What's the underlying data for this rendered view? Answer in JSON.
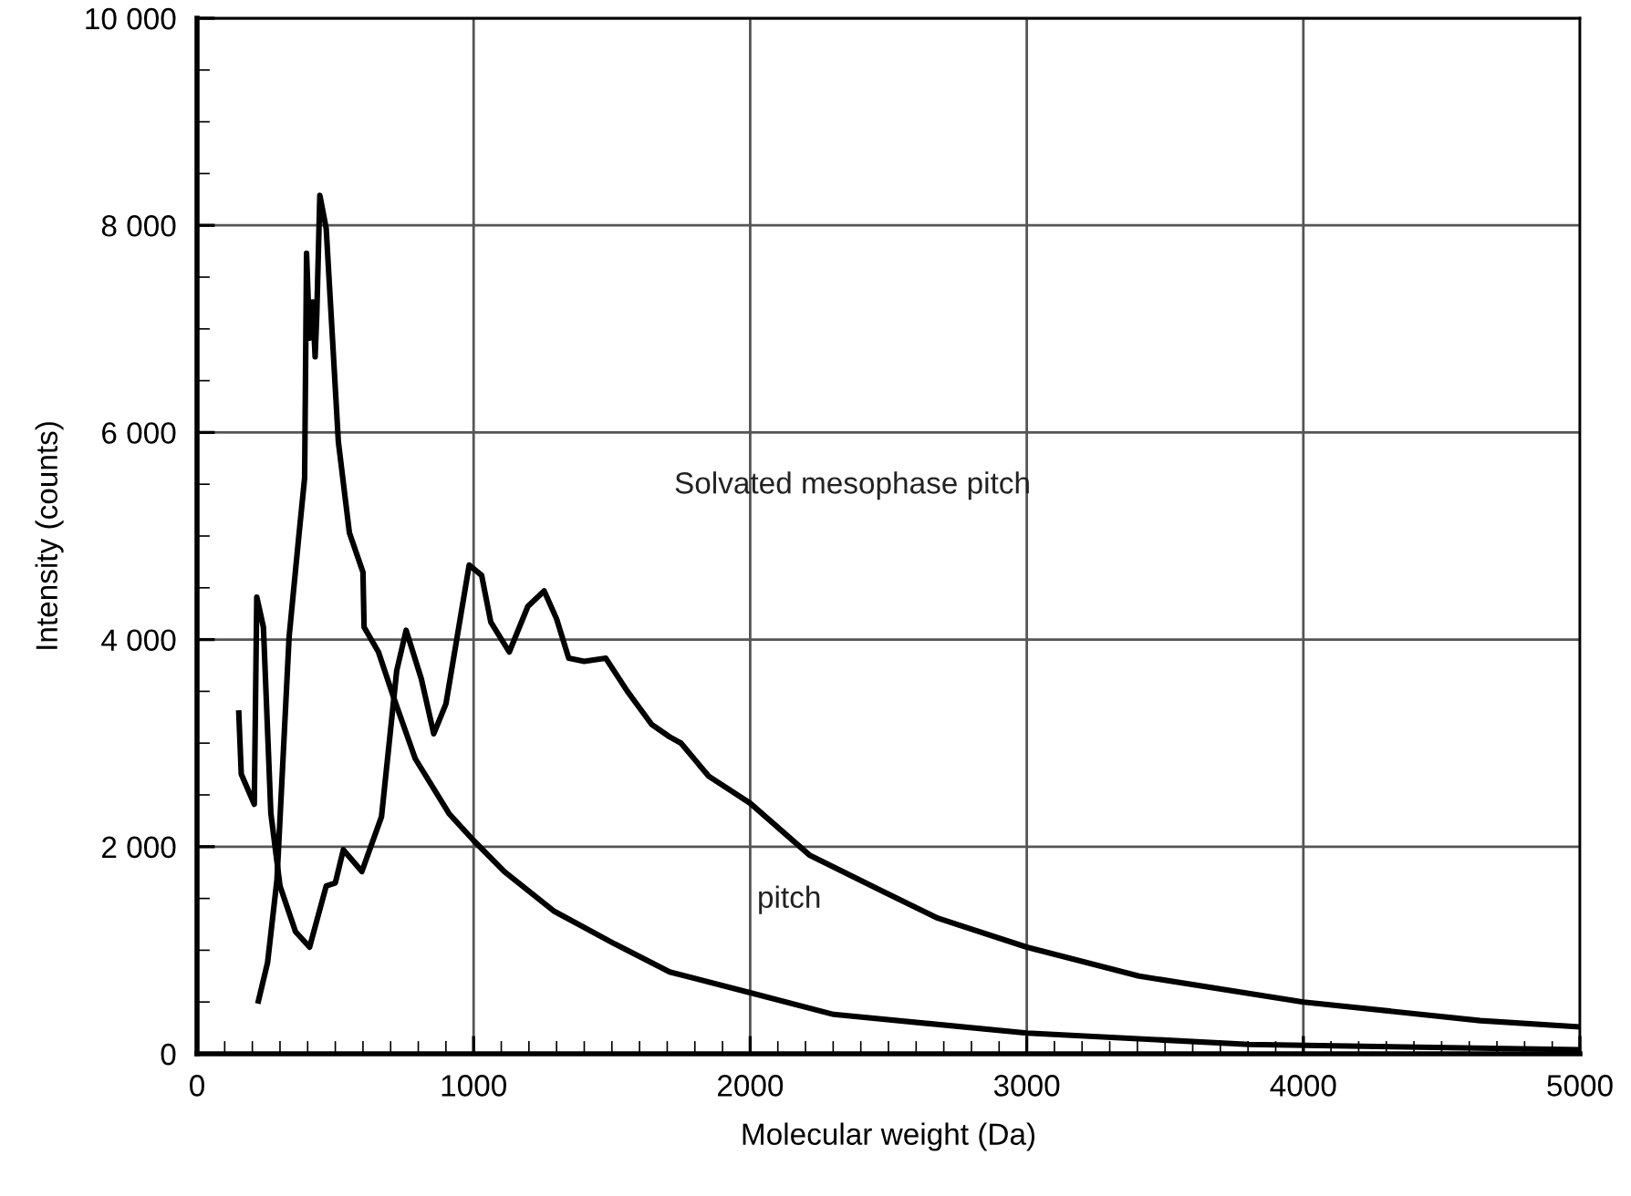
{
  "chart_data": {
    "type": "line",
    "xlabel": "Molecular weight (Da)",
    "ylabel": "Intensity (counts)",
    "xlim": [
      0,
      5000
    ],
    "xticks": [
      0,
      1000,
      2000,
      3000,
      4000,
      5000
    ],
    "ylim": [
      0,
      10000
    ],
    "yticks": [
      {
        "value": 0,
        "label": "0"
      },
      {
        "value": 2000,
        "label": "2 000"
      },
      {
        "value": 4000,
        "label": "4 000"
      },
      {
        "value": 6000,
        "label": "6 000"
      },
      {
        "value": 8000,
        "label": "8 000"
      },
      {
        "value": 10000,
        "label": "10 000"
      }
    ],
    "grid": true,
    "marker": "none",
    "line_style": "solid",
    "series": [
      {
        "color": "#000000",
        "x": [
          151,
          160,
          207,
          216,
          240,
          267,
          300,
          356,
          407,
          467,
          500,
          529,
          596,
          667,
          722,
          756,
          811,
          856,
          900,
          984,
          1029,
          1062,
          1129,
          1196,
          1255,
          1300,
          1344,
          1400,
          1478,
          1556,
          1644,
          1709,
          1750,
          1850,
          2000,
          2214,
          2479,
          2678,
          3000,
          3406,
          4000,
          4640,
          5000
        ],
        "values": [
          3290,
          2700,
          2410,
          4410,
          4120,
          2320,
          1620,
          1180,
          1030,
          1620,
          1650,
          1970,
          1760,
          2290,
          3700,
          4090,
          3620,
          3090,
          3380,
          4720,
          4620,
          4170,
          3880,
          4320,
          4470,
          4200,
          3820,
          3790,
          3820,
          3500,
          3180,
          3060,
          3000,
          2680,
          2420,
          1920,
          1570,
          1310,
          1030,
          750,
          500,
          320,
          260
        ]
      },
      {
        "color": "#000000",
        "x": [
          222,
          255,
          289,
          333,
          367,
          389,
          396,
          407,
          418,
          427,
          433,
          444,
          467,
          511,
          551,
          600,
          604,
          656,
          711,
          789,
          911,
          1000,
          1111,
          1289,
          1511,
          1709,
          2000,
          2302,
          3000,
          3804,
          5000
        ],
        "values": [
          510,
          880,
          1680,
          4030,
          4970,
          5560,
          7730,
          6910,
          7260,
          6730,
          7140,
          8290,
          7970,
          5910,
          5030,
          4650,
          4120,
          3880,
          3440,
          2850,
          2320,
          2060,
          1760,
          1380,
          1060,
          790,
          590,
          380,
          200,
          90,
          40
        ]
      }
    ],
    "annotations": [
      "Solvated mesophase pitch",
      "pitch"
    ]
  }
}
